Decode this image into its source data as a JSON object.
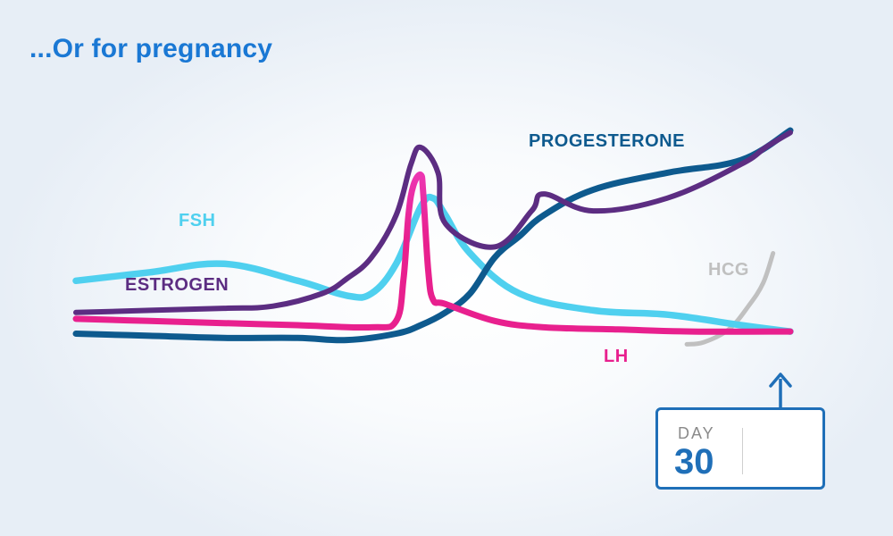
{
  "title": "...Or for pregnancy",
  "day_box": {
    "label": "DAY",
    "number": "30"
  },
  "colors": {
    "title": "#1a78d4",
    "FSH": "#4fd0ef",
    "ESTROGEN": "#5c2d82",
    "LH": "#e8208e",
    "LH_peak": "#f04ad2",
    "PROGESTERONE": "#0e5a8e",
    "HCG": "#c0c0c0",
    "day_box": "#1f6fb8"
  },
  "chart_data": {
    "type": "line",
    "title": "...Or for pregnancy",
    "xlabel": "",
    "ylabel": "",
    "grid": false,
    "legend": "inline labels next to each curve",
    "xlim": [
      1,
      30
    ],
    "ylim": [
      0,
      100
    ],
    "series": [
      {
        "name": "FSH",
        "x": [
          1,
          4,
          7,
          10,
          12,
          13,
          14,
          15,
          15.5,
          16,
          17,
          19,
          22,
          25,
          28,
          30
        ],
        "y": [
          29,
          33,
          37,
          29,
          22,
          23,
          37,
          64,
          68,
          60,
          42,
          23,
          15,
          13,
          8,
          5
        ]
      },
      {
        "name": "ESTROGEN",
        "x": [
          1,
          4,
          7,
          9,
          11,
          12,
          13,
          14,
          14.6,
          15,
          15.7,
          16,
          18,
          19.5,
          20,
          22,
          25,
          28,
          29,
          30
        ],
        "y": [
          14,
          15,
          16,
          17,
          23,
          30,
          40,
          60,
          84,
          92,
          80,
          56,
          45,
          62,
          70,
          62,
          68,
          84,
          92,
          99
        ]
      },
      {
        "name": "LH",
        "x": [
          1,
          4,
          7,
          10,
          13,
          14,
          14.3,
          14.5,
          14.7,
          15,
          15.1,
          15.3,
          15.5,
          16,
          18,
          20,
          23,
          26,
          30
        ],
        "y": [
          11,
          10,
          9,
          8,
          7,
          10,
          30,
          60,
          74,
          79,
          70,
          34,
          20,
          18,
          10,
          7,
          6,
          5,
          5
        ]
      },
      {
        "name": "PROGESTERONE",
        "x": [
          1,
          4,
          7,
          10,
          12,
          14,
          15,
          16,
          17,
          18,
          19,
          20,
          22,
          25,
          28,
          30
        ],
        "y": [
          4,
          3,
          2,
          2,
          1,
          4,
          8,
          14,
          23,
          40,
          50,
          60,
          72,
          80,
          86,
          100
        ]
      },
      {
        "name": "HCG",
        "x": [
          25.8,
          26.5,
          27.5,
          28.3,
          28.9,
          29.3
        ],
        "y": [
          -1,
          0,
          6,
          17,
          28,
          42
        ]
      }
    ],
    "labels": [
      "FSH",
      "ESTROGEN",
      "PROGESTERONE",
      "HCG",
      "LH"
    ],
    "annotation": {
      "text": "DAY 30",
      "points_to_x": 30
    }
  }
}
